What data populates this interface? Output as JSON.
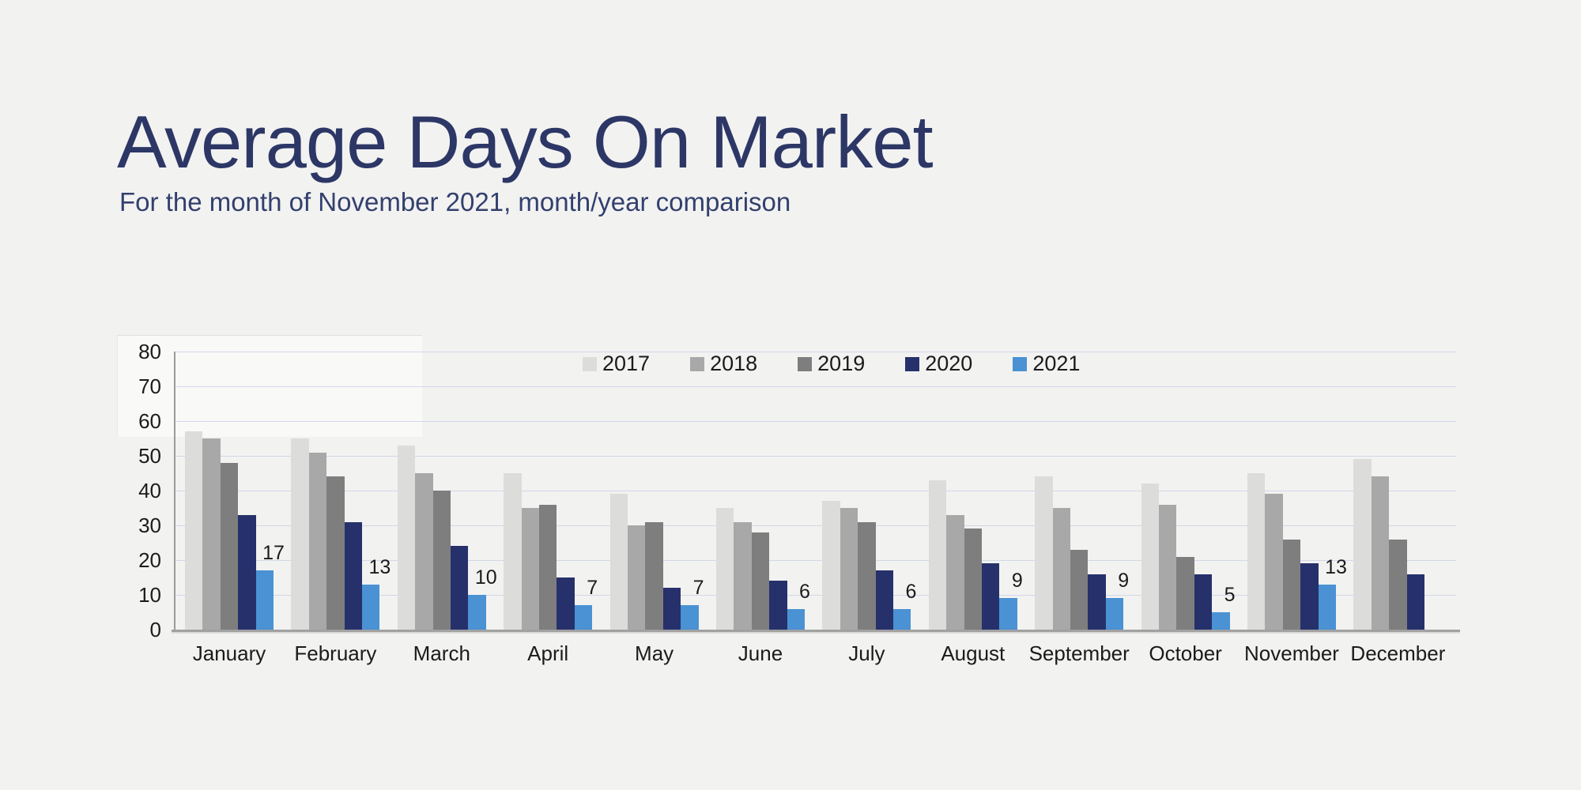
{
  "page": {
    "background": "#f2f2f1"
  },
  "header": {
    "title": "Average Days On Market",
    "subtitle": "For the month of November 2021, month/year comparison"
  },
  "chart_data": {
    "type": "bar",
    "title": "Average Days On Market",
    "subtitle": "For the month of November 2021, month/year comparison",
    "categories": [
      "January",
      "February",
      "March",
      "April",
      "May",
      "June",
      "July",
      "August",
      "September",
      "October",
      "November",
      "December"
    ],
    "series": [
      {
        "name": "2017",
        "color": "#dcdcda",
        "values": [
          57,
          55,
          53,
          45,
          39,
          35,
          37,
          43,
          44,
          42,
          45,
          49
        ]
      },
      {
        "name": "2018",
        "color": "#a8a8a8",
        "values": [
          55,
          51,
          45,
          35,
          30,
          31,
          35,
          33,
          35,
          36,
          39,
          44
        ]
      },
      {
        "name": "2019",
        "color": "#7e7e7e",
        "values": [
          48,
          44,
          40,
          36,
          31,
          28,
          31,
          29,
          23,
          21,
          26,
          26
        ]
      },
      {
        "name": "2020",
        "color": "#26316b",
        "values": [
          33,
          31,
          24,
          15,
          12,
          14,
          17,
          19,
          16,
          16,
          19,
          16
        ]
      },
      {
        "name": "2021",
        "color": "#4a92d3",
        "values": [
          17,
          13,
          10,
          7,
          7,
          6,
          6,
          9,
          9,
          5,
          13,
          null
        ]
      }
    ],
    "data_labels": {
      "series": "2021",
      "values": [
        17,
        13,
        10,
        7,
        7,
        6,
        6,
        9,
        9,
        5,
        13,
        null
      ]
    },
    "ylabel": "",
    "xlabel": "",
    "ylim": [
      0,
      80
    ],
    "yticks": [
      0,
      10,
      20,
      30,
      40,
      50,
      60,
      70,
      80
    ],
    "grid": "horizontal",
    "legend_position": "top-center",
    "text_color": "#1b1b1b",
    "gridline_color": "#d0d7e7",
    "axis_color": "#9b9b9b"
  }
}
